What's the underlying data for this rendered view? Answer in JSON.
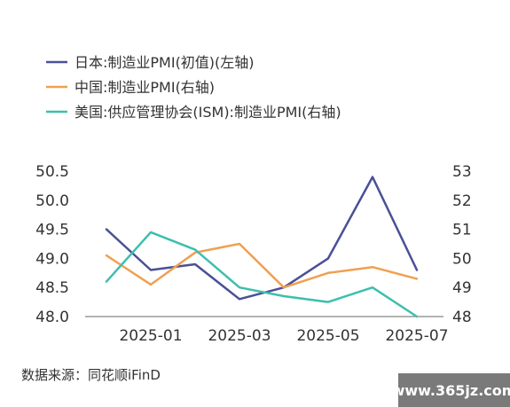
{
  "chart_data": {
    "type": "line",
    "categories": [
      "2024-12",
      "2025-01",
      "2025-02",
      "2025-03",
      "2025-04",
      "2025-05",
      "2025-06",
      "2025-07"
    ],
    "x_tick_labels": [
      "2025-01",
      "2025-03",
      "2025-05",
      "2025-07"
    ],
    "left_axis": {
      "ylim": [
        48.0,
        50.5
      ],
      "ticks": [
        "48.0",
        "48.5",
        "49.0",
        "49.5",
        "50.0",
        "50.5"
      ]
    },
    "right_axis": {
      "ylim": [
        48,
        53
      ],
      "ticks": [
        "48",
        "49",
        "50",
        "51",
        "52",
        "53"
      ]
    },
    "series": [
      {
        "name": "日本:制造业PMI(初值)(左轴)",
        "axis": "left",
        "color": "#4a5096",
        "values": [
          49.5,
          48.8,
          48.9,
          48.3,
          48.5,
          49.0,
          50.4,
          48.8
        ]
      },
      {
        "name": "中国:制造业PMI(右轴)",
        "axis": "right",
        "color": "#f0a050",
        "values": [
          50.1,
          49.1,
          50.2,
          50.5,
          49.0,
          49.5,
          49.7,
          49.3
        ]
      },
      {
        "name": "美国:供应管理协会(ISM):制造业PMI(右轴)",
        "axis": "right",
        "color": "#3dbfad",
        "values": [
          49.2,
          50.9,
          50.3,
          49.0,
          48.7,
          48.5,
          49.0,
          48.0
        ]
      }
    ],
    "grid": false,
    "legend_position": "top-left"
  },
  "source": "数据来源：同花顺iFinD",
  "watermark": "www.365jz.com"
}
